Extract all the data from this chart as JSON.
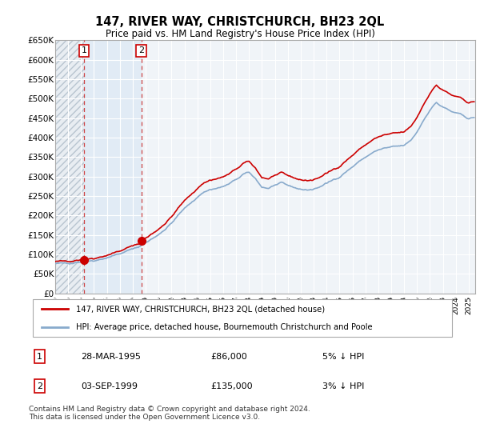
{
  "title": "147, RIVER WAY, CHRISTCHURCH, BH23 2QL",
  "subtitle": "Price paid vs. HM Land Registry's House Price Index (HPI)",
  "legend_label_red": "147, RIVER WAY, CHRISTCHURCH, BH23 2QL (detached house)",
  "legend_label_blue": "HPI: Average price, detached house, Bournemouth Christchurch and Poole",
  "footnote": "Contains HM Land Registry data © Crown copyright and database right 2024.\nThis data is licensed under the Open Government Licence v3.0.",
  "transaction_1_date": "28-MAR-1995",
  "transaction_1_price": "£86,000",
  "transaction_1_hpi": "5% ↓ HPI",
  "transaction_2_date": "03-SEP-1999",
  "transaction_2_price": "£135,000",
  "transaction_2_hpi": "3% ↓ HPI",
  "ylim": [
    0,
    650000
  ],
  "yticks": [
    0,
    50000,
    100000,
    150000,
    200000,
    250000,
    300000,
    350000,
    400000,
    450000,
    500000,
    550000,
    600000,
    650000
  ],
  "background_color": "#ffffff",
  "plot_bg_color": "#f0f4f8",
  "grid_color": "#ffffff",
  "red_line_color": "#cc0000",
  "blue_line_color": "#88aacc",
  "vline_color": "#cc3333",
  "shade_color": "#dce8f5",
  "hatch_area_color": "#d0d8e0",
  "transaction_x1": 1995.23,
  "transaction_x2": 1999.67,
  "transaction_y1": 86000,
  "transaction_y2": 135000,
  "xmin": 1993.0,
  "xmax": 2025.5
}
